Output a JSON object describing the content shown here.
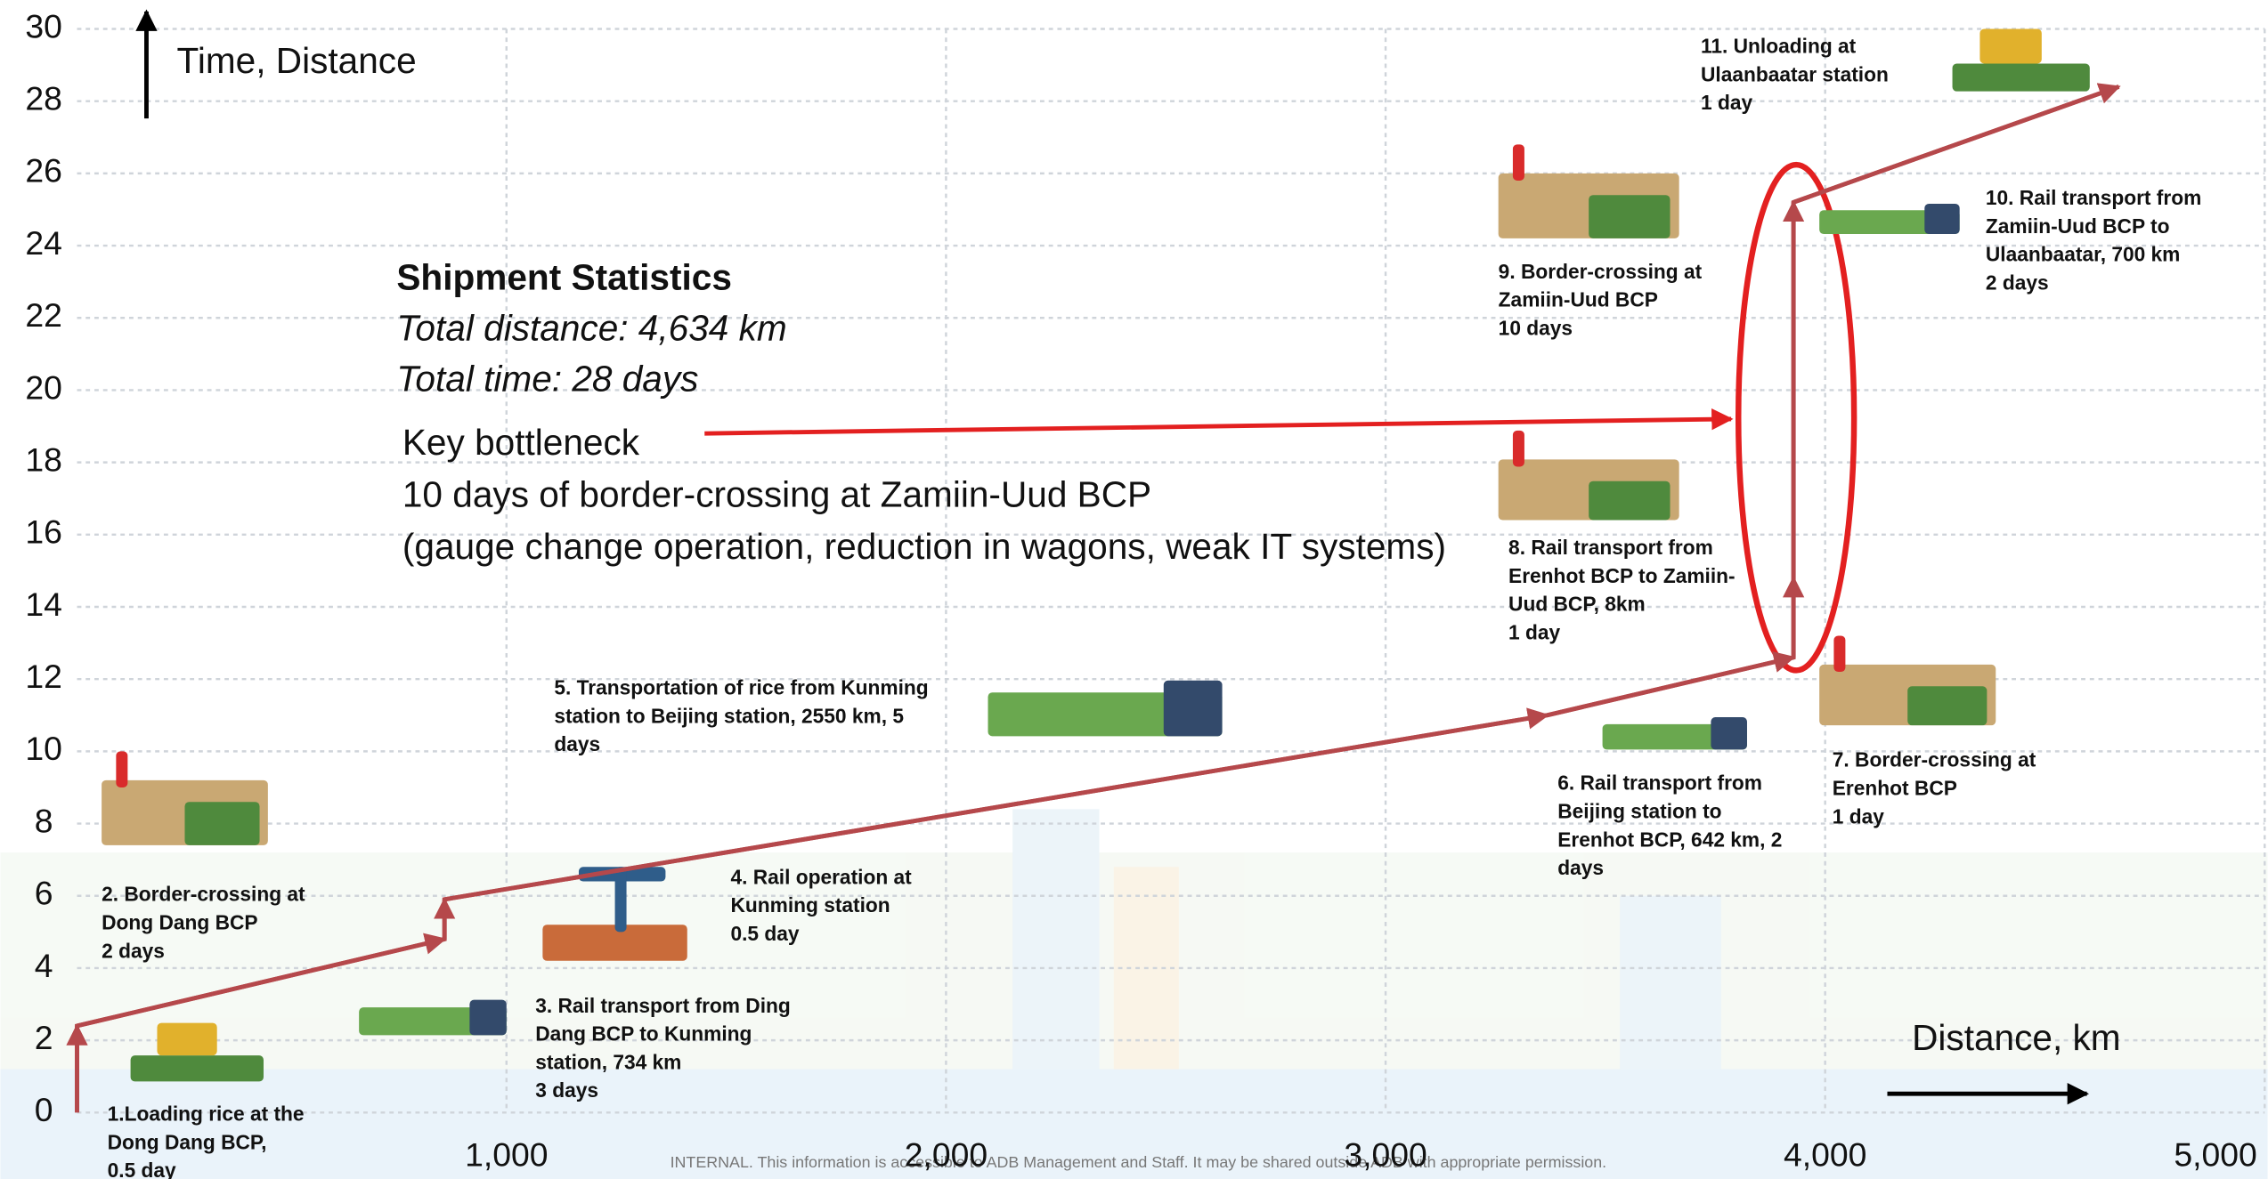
{
  "chart_data": {
    "type": "line",
    "y_axis_label": "Time, Distance",
    "x_axis_label": "Distance, km",
    "xlim": [
      0,
      5000
    ],
    "ylim": [
      0,
      30
    ],
    "xticks": [
      {
        "value": 1000,
        "label": "1,000"
      },
      {
        "value": 2000,
        "label": "2,000"
      },
      {
        "value": 3000,
        "label": "3,000"
      },
      {
        "value": 4000,
        "label": "4,000"
      },
      {
        "value": 5000,
        "label": "5,000"
      }
    ],
    "yticks": [
      0,
      2,
      4,
      6,
      8,
      10,
      12,
      14,
      16,
      18,
      20,
      22,
      24,
      26,
      28,
      30
    ],
    "grid": true,
    "series": [
      {
        "color": "#b5484b",
        "x": [
          23,
          23,
          859,
          859,
          3368,
          3928,
          3928,
          3928,
          4668
        ],
        "values": [
          0,
          2.4,
          4.8,
          5.9,
          11,
          12.6,
          14.8,
          25.2,
          28.4
        ]
      }
    ],
    "stats": {
      "title": "Shipment Statistics",
      "lines": [
        "Total distance: 4,634 km",
        "Total time: 28 days"
      ]
    },
    "bottleneck": {
      "lines": [
        "Key bottleneck",
        "10 days of border-crossing at Zamiin-Uud BCP",
        "(gauge change operation, reduction in  wagons, weak IT systems)"
      ]
    },
    "annotations": [
      {
        "lines": [
          "1.Loading rice at the",
          "Dong Dang BCP,",
          "0.5 day"
        ]
      },
      {
        "lines": [
          "2. Border-crossing at",
          "Dong Dang BCP",
          "2 days"
        ]
      },
      {
        "lines": [
          "3. Rail transport from Ding",
          "Dang BCP to Kunming",
          "station, 734 km",
          "3 days"
        ]
      },
      {
        "lines": [
          "4. Rail operation at",
          "Kunming station",
          "0.5 day"
        ]
      },
      {
        "lines": [
          "5. Transportation of rice from Kunming",
          "station to Beijing station, 2550 km, 5",
          "days"
        ]
      },
      {
        "lines": [
          "6. Rail transport from",
          "Beijing station to",
          "Erenhot BCP, 642 km, 2",
          "days"
        ]
      },
      {
        "lines": [
          "7. Border-crossing at",
          "Erenhot BCP",
          "1 day"
        ]
      },
      {
        "lines": [
          "8. Rail transport from",
          "Erenhot BCP to Zamiin-",
          "Uud BCP, 8km",
          "1 day"
        ]
      },
      {
        "lines": [
          "9. Border-crossing at",
          "Zamiin-Uud BCP",
          "10 days"
        ]
      },
      {
        "lines": [
          "10. Rail transport from",
          "Zamiin-Uud BCP to",
          "Ulaanbaatar, 700 km",
          "2 days"
        ]
      },
      {
        "lines": [
          "11. Unloading at",
          "Ulaanbaatar station",
          "1 day"
        ]
      }
    ],
    "footer": "INTERNAL. This information is accessible to ADB Management and Staff. It may be shared outside ADB with appropriate permission."
  }
}
